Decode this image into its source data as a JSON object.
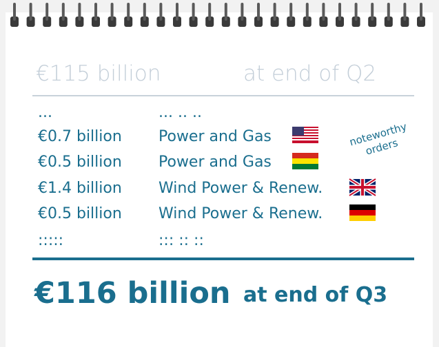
{
  "header": {
    "amount": "€115 billion",
    "label": "at end of Q2"
  },
  "orders": {
    "note": [
      "noteworthy",
      "orders"
    ],
    "rows": [
      [
        "...",
        "... .. .."
      ],
      [
        "€0.7 billion",
        "Power and Gas"
      ],
      [
        "€0.5 billion",
        "Power and Gas"
      ],
      [
        "€1.4 billion",
        "Wind Power & Renew."
      ],
      [
        "€0.5 billion",
        "Wind Power & Renew."
      ],
      [
        ":::::",
        "::: :: ::"
      ]
    ]
  },
  "footer": {
    "amount": "€116 billion",
    "label": "at end of Q3"
  }
}
